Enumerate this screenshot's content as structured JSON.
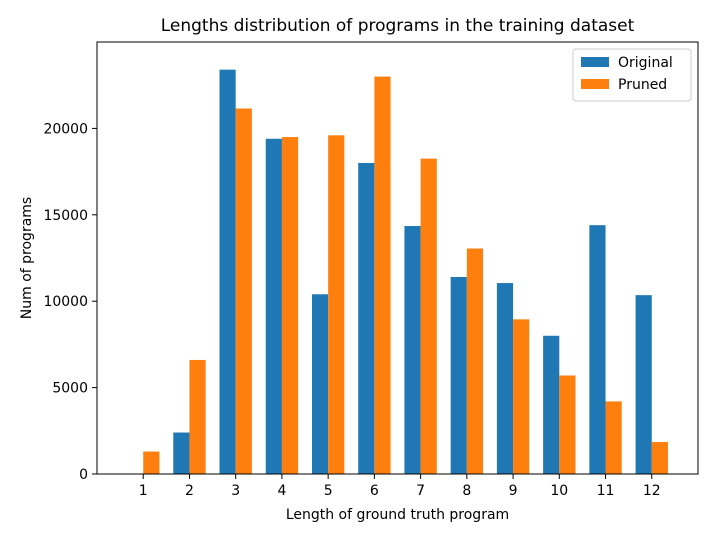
{
  "chart_data": {
    "type": "bar",
    "title": "Lengths distribution of programs in the training dataset",
    "xlabel": "Length of ground truth program",
    "ylabel": "Num of programs",
    "categories": [
      "1",
      "2",
      "3",
      "4",
      "5",
      "6",
      "7",
      "8",
      "9",
      "10",
      "11",
      "12"
    ],
    "series": [
      {
        "name": "Original",
        "color": "#1f77b4",
        "values": [
          0,
          2400,
          23400,
          19400,
          10400,
          18000,
          14350,
          11400,
          11050,
          8000,
          14400,
          10350
        ]
      },
      {
        "name": "Pruned",
        "color": "#ff7f0e",
        "values": [
          1300,
          6600,
          21150,
          19500,
          19600,
          23000,
          18250,
          13050,
          8950,
          5700,
          4200,
          1850
        ]
      }
    ],
    "ylim": [
      0,
      25000
    ],
    "yticks": [
      0,
      5000,
      10000,
      15000,
      20000
    ],
    "legend_position": "top-right",
    "grid": false
  }
}
